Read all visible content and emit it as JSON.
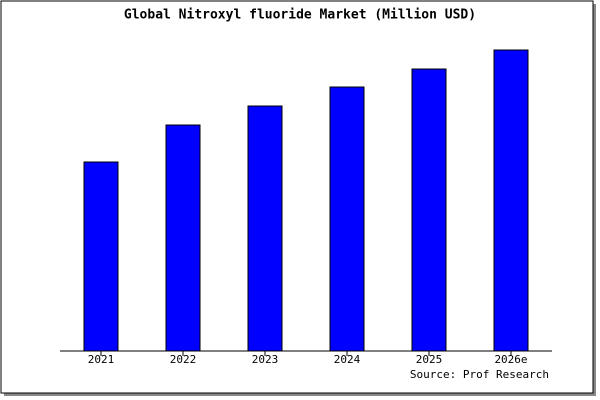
{
  "chart_data": {
    "type": "bar",
    "title": "Global Nitroxyl fluoride Market (Million USD)",
    "categories": [
      "2021",
      "2022",
      "2023",
      "2024",
      "2025",
      "2026e"
    ],
    "values": [
      189,
      226,
      245,
      264,
      282,
      301
    ],
    "color": "#0000ff",
    "ylim": [
      0,
      301
    ],
    "source": "Source: Prof Research"
  }
}
